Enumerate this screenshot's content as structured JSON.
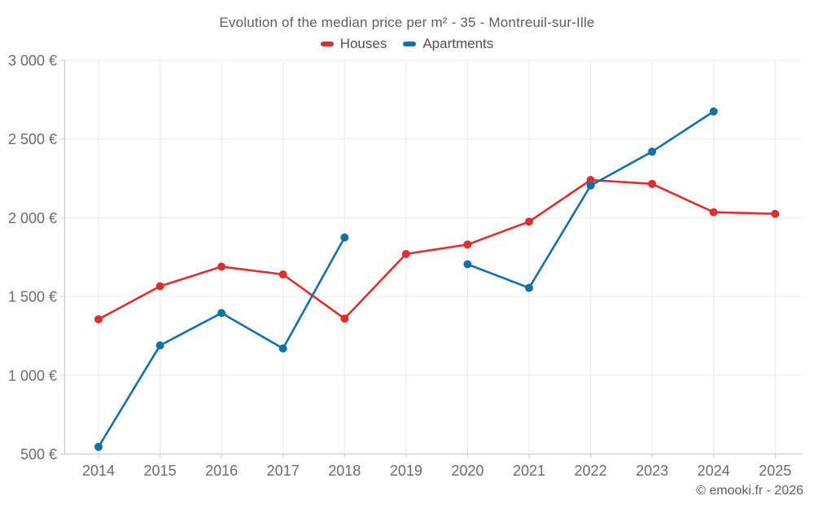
{
  "header": {
    "title": "Evolution of the median price per m² - 35 - Montreuil-sur-Ille"
  },
  "footer": {
    "copyright": "© emooki.fr - 2026"
  },
  "chart_data": {
    "type": "line",
    "title": "Evolution of the median price per m² - 35 - Montreuil-sur-Ille",
    "categories": [
      "2014",
      "2015",
      "2016",
      "2017",
      "2018",
      "2019",
      "2020",
      "2021",
      "2022",
      "2023",
      "2024",
      "2025"
    ],
    "series": [
      {
        "name": "Houses",
        "color": "#e02d2d",
        "values": [
          1355,
          1565,
          1690,
          1640,
          1360,
          1770,
          1830,
          1975,
          2240,
          2215,
          2035,
          2025
        ]
      },
      {
        "name": "Apartments",
        "color": "#1270ab",
        "values": [
          545,
          1190,
          1395,
          1170,
          1875,
          null,
          1705,
          1555,
          2205,
          2420,
          2675,
          null
        ]
      }
    ],
    "xlabel": "",
    "ylabel": "",
    "ylim": [
      500,
      3000
    ],
    "yticks": [
      {
        "value": 500,
        "label": "500 €"
      },
      {
        "value": 1000,
        "label": "1 000 €"
      },
      {
        "value": 1500,
        "label": "1 500 €"
      },
      {
        "value": 2000,
        "label": "2 000 €"
      },
      {
        "value": 2500,
        "label": "2 500 €"
      },
      {
        "value": 3000,
        "label": "3 000 €"
      }
    ],
    "grid": true,
    "legend_position": "top",
    "currency_suffix": "€"
  }
}
